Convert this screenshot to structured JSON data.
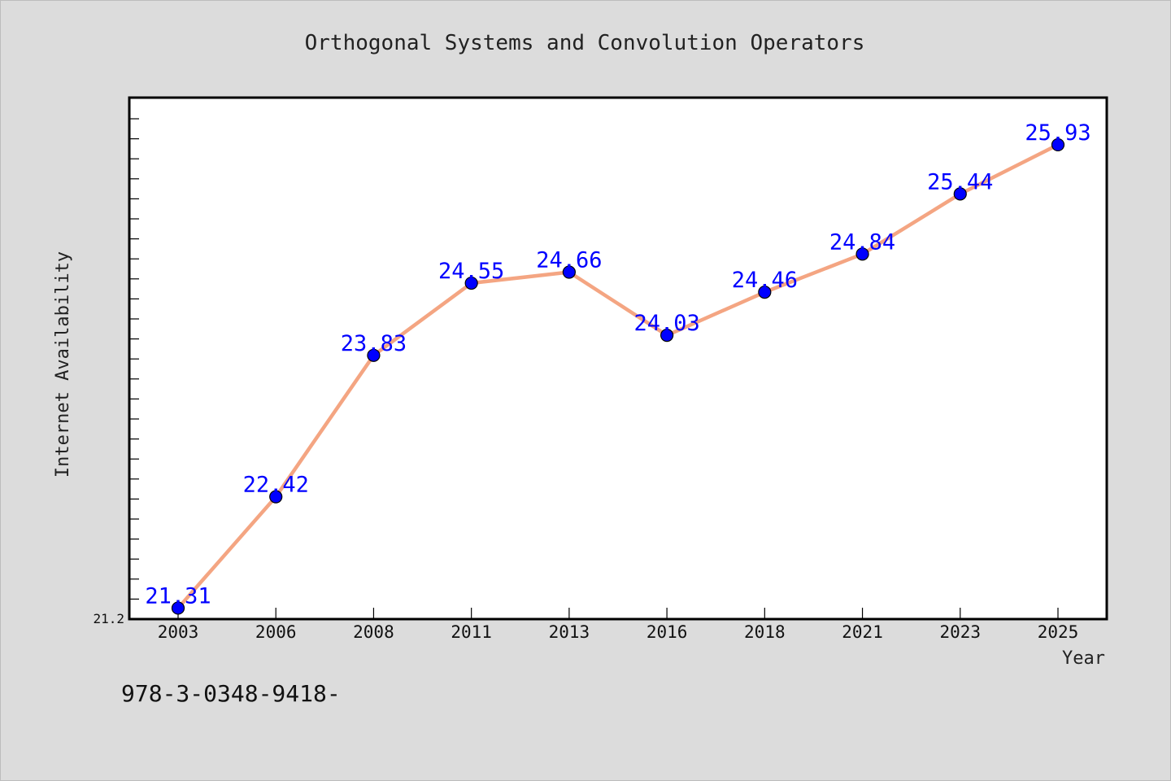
{
  "chart_data": {
    "type": "line",
    "title": "Orthogonal Systems and Convolution Operators",
    "xlabel": "Year",
    "ylabel": "Internet Availability",
    "categories": [
      "2003",
      "2006",
      "2008",
      "2011",
      "2013",
      "2016",
      "2018",
      "2021",
      "2023",
      "2025"
    ],
    "series": [
      {
        "values": [
          21.31,
          22.42,
          23.83,
          24.55,
          24.66,
          24.03,
          24.46,
          24.84,
          25.44,
          25.93
        ]
      }
    ],
    "data_labels": [
      "21.31",
      "22.42",
      "23.83",
      "24.55",
      "24.66",
      "24.03",
      "24.46",
      "24.84",
      "25.44",
      "25.93"
    ],
    "ylim": [
      21.2,
      26.4
    ],
    "y_tick_label_min": "21.2",
    "grid": false,
    "legend": "none",
    "colors": {
      "line": "#f4a582",
      "marker": "#0000ff",
      "data_label": "#0000ff",
      "plot_background": "#ffffff",
      "page_background": "#dcdcdc"
    }
  },
  "footer": {
    "code": "978-3-0348-9418-"
  }
}
